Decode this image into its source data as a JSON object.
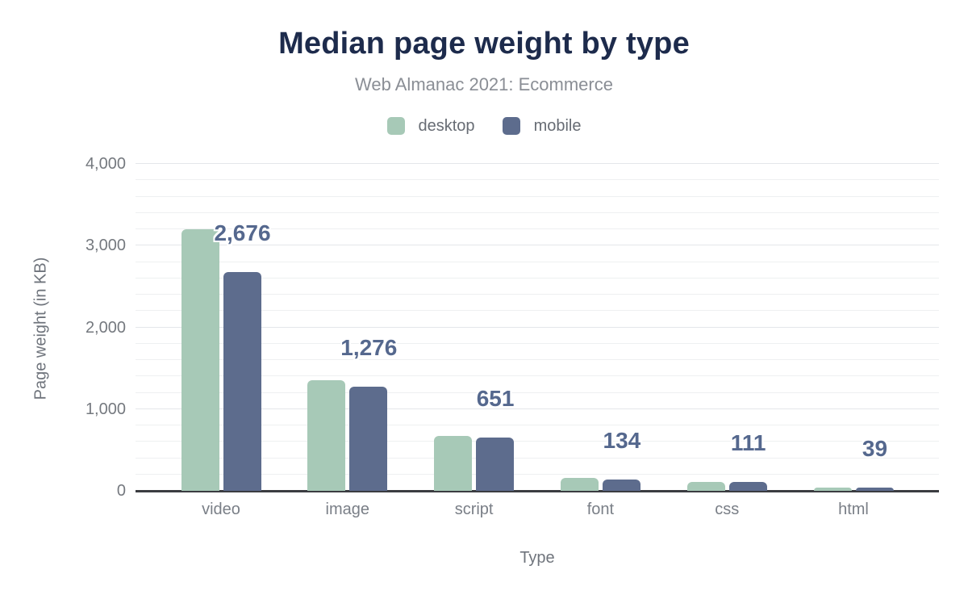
{
  "meta": {
    "title": "Median page weight by type",
    "subtitle": "Web Almanac 2021: Ecommerce"
  },
  "legend": [
    {
      "label": "desktop",
      "color": "#a7c9b7"
    },
    {
      "label": "mobile",
      "color": "#5d6c8d"
    }
  ],
  "colors": {
    "title": "#1d2b4c",
    "subtitle": "#8a8e95",
    "desktop_bar": "#a7c9b7",
    "mobile_bar": "#5d6c8d",
    "data_label": "#55688e",
    "axis_line": "#3b3c41",
    "gridline_major": "#e4e7ea",
    "gridline_minor": "#eef0f1"
  },
  "chart_data": {
    "type": "bar",
    "title": "Median page weight by type",
    "subtitle": "Web Almanac 2021: Ecommerce",
    "categories": [
      "video",
      "image",
      "script",
      "font",
      "css",
      "html"
    ],
    "series": [
      {
        "name": "desktop",
        "color": "#a7c9b7",
        "labeled": false,
        "values": [
          3199,
          1356,
          670,
          155,
          107,
          43
        ]
      },
      {
        "name": "mobile",
        "color": "#5d6c8d",
        "labeled": true,
        "values": [
          2676,
          1276,
          651,
          134,
          111,
          39
        ]
      }
    ],
    "data_labels": [
      "2,676",
      "1,276",
      "651",
      "134",
      "111",
      "39"
    ],
    "xlabel": "Type",
    "ylabel": "Page weight (in KB)",
    "ylim": [
      0,
      4000
    ],
    "y_ticks": [
      {
        "value": 0,
        "label": "0"
      },
      {
        "value": 1000,
        "label": "1,000"
      },
      {
        "value": 2000,
        "label": "2,000"
      },
      {
        "value": 3000,
        "label": "3,000"
      },
      {
        "value": 4000,
        "label": "4,000"
      }
    ],
    "grid": true,
    "grid_step": 200,
    "legend_position": "top"
  }
}
